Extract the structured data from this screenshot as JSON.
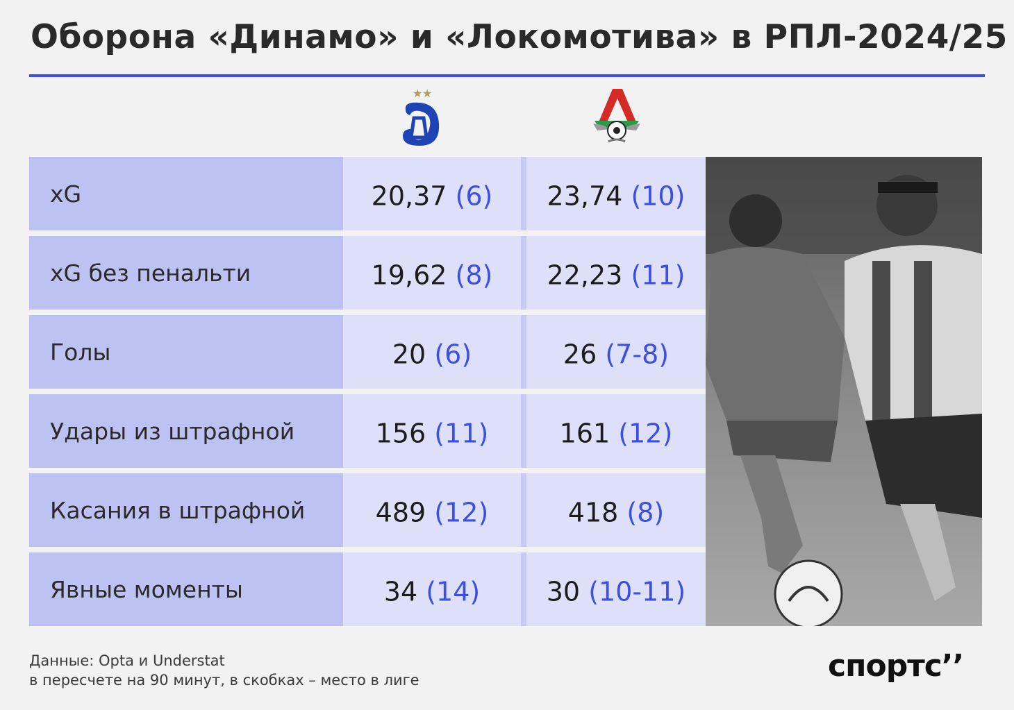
{
  "title": "Оборона «Динамо» и «Локомотива» в РПЛ-2024/25",
  "teams": [
    {
      "name": "Динамо",
      "logo_icon": "dinamo-logo-icon",
      "color": "#1e43b5"
    },
    {
      "name": "Локомотив",
      "logo_icon": "lokomotiv-logo-icon",
      "color": "#d42b26"
    }
  ],
  "accent_color": "#3d4fe0",
  "chart_data": {
    "type": "table",
    "columns": [
      "Динамо",
      "Локомотив"
    ],
    "rows": [
      {
        "label": "xG",
        "dinamo": {
          "value": "20,37",
          "rank": "(6)"
        },
        "loko": {
          "value": "23,74",
          "rank": "(10)"
        }
      },
      {
        "label": "xG без пенальти",
        "dinamo": {
          "value": "19,62",
          "rank": "(8)"
        },
        "loko": {
          "value": "22,23",
          "rank": "(11)"
        }
      },
      {
        "label": "Голы",
        "dinamo": {
          "value": "20",
          "rank": "(6)"
        },
        "loko": {
          "value": "26",
          "rank": "(7-8)"
        }
      },
      {
        "label": "Удары из штрафной",
        "dinamo": {
          "value": "156",
          "rank": "(11)"
        },
        "loko": {
          "value": "161",
          "rank": "(12)"
        }
      },
      {
        "label": "Касания в штрафной",
        "dinamo": {
          "value": "489",
          "rank": "(12)"
        },
        "loko": {
          "value": "418",
          "rank": "(8)"
        }
      },
      {
        "label": "Явные моменты",
        "dinamo": {
          "value": "34",
          "rank": "(14)"
        },
        "loko": {
          "value": "30",
          "rank": "(10-11)"
        }
      }
    ]
  },
  "photo": {
    "icon": "football-players-photo"
  },
  "footer": {
    "source_line1": "Данные: Opta и Understat",
    "source_line2": "в пересчете на 90 минут, в скобках – место в лиге",
    "brand": "спортс’’"
  }
}
